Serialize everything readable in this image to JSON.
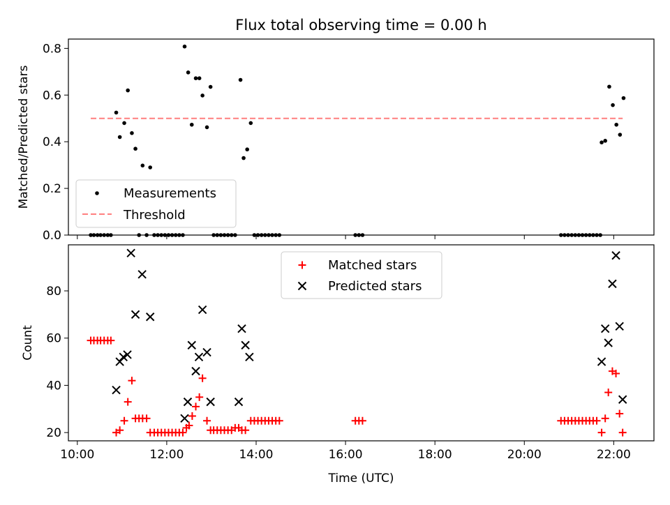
{
  "chart_data": [
    {
      "type": "scatter",
      "title": "Flux total observing time = 0.00 h",
      "xlabel": "",
      "ylabel": "Matched/Predicted stars",
      "xlim": [
        9.8,
        22.9
      ],
      "ylim": [
        0.0,
        0.84
      ],
      "yticks": [
        0.0,
        0.2,
        0.4,
        0.6,
        0.8
      ],
      "ytick_labels": [
        "0.0",
        "0.2",
        "0.4",
        "0.6",
        "0.8"
      ],
      "xticks": [
        10,
        12,
        14,
        16,
        18,
        20,
        22
      ],
      "show_xtick_labels": false,
      "grid": false,
      "legend": {
        "position": "lower-left",
        "entries": [
          "Measurements",
          "Threshold"
        ]
      },
      "series": [
        {
          "name": "Measurements",
          "marker": "dot",
          "color": "#000000",
          "points": [
            [
              10.3,
              0
            ],
            [
              10.37,
              0
            ],
            [
              10.45,
              0
            ],
            [
              10.52,
              0
            ],
            [
              10.6,
              0
            ],
            [
              10.68,
              0
            ],
            [
              10.75,
              0
            ],
            [
              10.87,
              0.525
            ],
            [
              10.95,
              0.42
            ],
            [
              11.05,
              0.48
            ],
            [
              11.13,
              0.62
            ],
            [
              11.22,
              0.437
            ],
            [
              11.3,
              0.37
            ],
            [
              11.38,
              0
            ],
            [
              11.46,
              0.298
            ],
            [
              11.55,
              0
            ],
            [
              11.63,
              0.29
            ],
            [
              11.72,
              0
            ],
            [
              11.8,
              0
            ],
            [
              11.88,
              0
            ],
            [
              11.96,
              0
            ],
            [
              12.04,
              0
            ],
            [
              12.12,
              0
            ],
            [
              12.2,
              0
            ],
            [
              12.28,
              0
            ],
            [
              12.36,
              0
            ],
            [
              12.4,
              0.808
            ],
            [
              12.48,
              0.697
            ],
            [
              12.56,
              0.473
            ],
            [
              12.65,
              0.672
            ],
            [
              12.73,
              0.672
            ],
            [
              12.8,
              0.598
            ],
            [
              12.9,
              0.462
            ],
            [
              12.98,
              0.635
            ],
            [
              13.05,
              0
            ],
            [
              13.13,
              0
            ],
            [
              13.21,
              0
            ],
            [
              13.29,
              0
            ],
            [
              13.37,
              0
            ],
            [
              13.45,
              0
            ],
            [
              13.53,
              0
            ],
            [
              13.65,
              0.665
            ],
            [
              13.72,
              0.33
            ],
            [
              13.8,
              0.367
            ],
            [
              13.88,
              0.48
            ],
            [
              13.96,
              0
            ],
            [
              14.04,
              0
            ],
            [
              14.12,
              0
            ],
            [
              14.2,
              0
            ],
            [
              14.28,
              0
            ],
            [
              14.36,
              0
            ],
            [
              14.44,
              0
            ],
            [
              14.52,
              0
            ],
            [
              16.22,
              0
            ],
            [
              16.3,
              0
            ],
            [
              16.38,
              0
            ],
            [
              20.82,
              0
            ],
            [
              20.9,
              0
            ],
            [
              20.98,
              0
            ],
            [
              21.06,
              0
            ],
            [
              21.14,
              0
            ],
            [
              21.22,
              0
            ],
            [
              21.3,
              0
            ],
            [
              21.38,
              0
            ],
            [
              21.46,
              0
            ],
            [
              21.54,
              0
            ],
            [
              21.62,
              0
            ],
            [
              21.7,
              0
            ],
            [
              21.73,
              0.397
            ],
            [
              21.81,
              0.404
            ],
            [
              21.9,
              0.636
            ],
            [
              21.98,
              0.557
            ],
            [
              22.06,
              0.473
            ],
            [
              22.14,
              0.43
            ],
            [
              22.22,
              0.587
            ]
          ]
        },
        {
          "name": "Threshold",
          "type": "line",
          "style": "dashed",
          "color": "#ff7f7f",
          "x": [
            10.3,
            22.2
          ],
          "y": [
            0.5,
            0.5
          ]
        }
      ]
    },
    {
      "type": "scatter",
      "title": "",
      "xlabel": "Time (UTC)",
      "ylabel": "Count",
      "xlim": [
        9.8,
        22.9
      ],
      "ylim": [
        16.5,
        99.5
      ],
      "yticks": [
        20,
        40,
        60,
        80
      ],
      "ytick_labels": [
        "20",
        "40",
        "60",
        "80"
      ],
      "xticks": [
        10,
        12,
        14,
        16,
        18,
        20,
        22
      ],
      "xtick_labels": [
        "10:00",
        "12:00",
        "14:00",
        "16:00",
        "18:00",
        "20:00",
        "22:00"
      ],
      "grid": false,
      "legend": {
        "position": "upper-center",
        "entries": [
          "Matched stars",
          "Predicted stars"
        ]
      },
      "series": [
        {
          "name": "Matched stars",
          "marker": "plus",
          "color": "#ff0000",
          "points": [
            [
              10.3,
              59
            ],
            [
              10.37,
              59
            ],
            [
              10.45,
              59
            ],
            [
              10.52,
              59
            ],
            [
              10.6,
              59
            ],
            [
              10.68,
              59
            ],
            [
              10.75,
              59
            ],
            [
              10.87,
              20
            ],
            [
              10.95,
              21
            ],
            [
              11.05,
              25
            ],
            [
              11.13,
              33
            ],
            [
              11.22,
              42
            ],
            [
              11.3,
              26
            ],
            [
              11.38,
              26
            ],
            [
              11.46,
              26
            ],
            [
              11.55,
              26
            ],
            [
              11.63,
              20
            ],
            [
              11.72,
              20
            ],
            [
              11.8,
              20
            ],
            [
              11.88,
              20
            ],
            [
              11.96,
              20
            ],
            [
              12.04,
              20
            ],
            [
              12.12,
              20
            ],
            [
              12.2,
              20
            ],
            [
              12.28,
              20
            ],
            [
              12.36,
              20
            ],
            [
              12.44,
              22
            ],
            [
              12.5,
              23
            ],
            [
              12.57,
              27
            ],
            [
              12.65,
              31
            ],
            [
              12.73,
              35
            ],
            [
              12.8,
              43
            ],
            [
              12.9,
              25
            ],
            [
              12.98,
              21
            ],
            [
              13.05,
              21
            ],
            [
              13.13,
              21
            ],
            [
              13.21,
              21
            ],
            [
              13.29,
              21
            ],
            [
              13.37,
              21
            ],
            [
              13.45,
              21
            ],
            [
              13.53,
              22
            ],
            [
              13.61,
              22
            ],
            [
              13.68,
              21
            ],
            [
              13.76,
              21
            ],
            [
              13.88,
              25
            ],
            [
              13.96,
              25
            ],
            [
              14.04,
              25
            ],
            [
              14.12,
              25
            ],
            [
              14.2,
              25
            ],
            [
              14.28,
              25
            ],
            [
              14.36,
              25
            ],
            [
              14.44,
              25
            ],
            [
              14.52,
              25
            ],
            [
              16.22,
              25
            ],
            [
              16.3,
              25
            ],
            [
              16.38,
              25
            ],
            [
              20.82,
              25
            ],
            [
              20.9,
              25
            ],
            [
              20.98,
              25
            ],
            [
              21.06,
              25
            ],
            [
              21.14,
              25
            ],
            [
              21.22,
              25
            ],
            [
              21.3,
              25
            ],
            [
              21.38,
              25
            ],
            [
              21.46,
              25
            ],
            [
              21.54,
              25
            ],
            [
              21.62,
              25
            ],
            [
              21.73,
              20
            ],
            [
              21.81,
              26
            ],
            [
              21.88,
              37
            ],
            [
              21.97,
              46
            ],
            [
              22.05,
              45
            ],
            [
              22.13,
              28
            ],
            [
              22.2,
              20
            ]
          ]
        },
        {
          "name": "Predicted stars",
          "marker": "x",
          "color": "#000000",
          "points": [
            [
              10.87,
              38
            ],
            [
              10.95,
              50
            ],
            [
              11.03,
              52
            ],
            [
              11.12,
              53
            ],
            [
              11.2,
              96
            ],
            [
              11.3,
              70
            ],
            [
              11.45,
              87
            ],
            [
              11.63,
              69
            ],
            [
              12.4,
              26
            ],
            [
              12.47,
              33
            ],
            [
              12.56,
              57
            ],
            [
              12.65,
              46
            ],
            [
              12.72,
              52
            ],
            [
              12.8,
              72
            ],
            [
              12.9,
              54
            ],
            [
              12.98,
              33
            ],
            [
              13.61,
              33
            ],
            [
              13.68,
              64
            ],
            [
              13.76,
              57
            ],
            [
              13.85,
              52
            ],
            [
              21.73,
              50
            ],
            [
              21.81,
              64
            ],
            [
              21.88,
              58
            ],
            [
              21.97,
              83
            ],
            [
              22.05,
              95
            ],
            [
              22.13,
              65
            ],
            [
              22.2,
              34
            ]
          ]
        }
      ]
    }
  ]
}
